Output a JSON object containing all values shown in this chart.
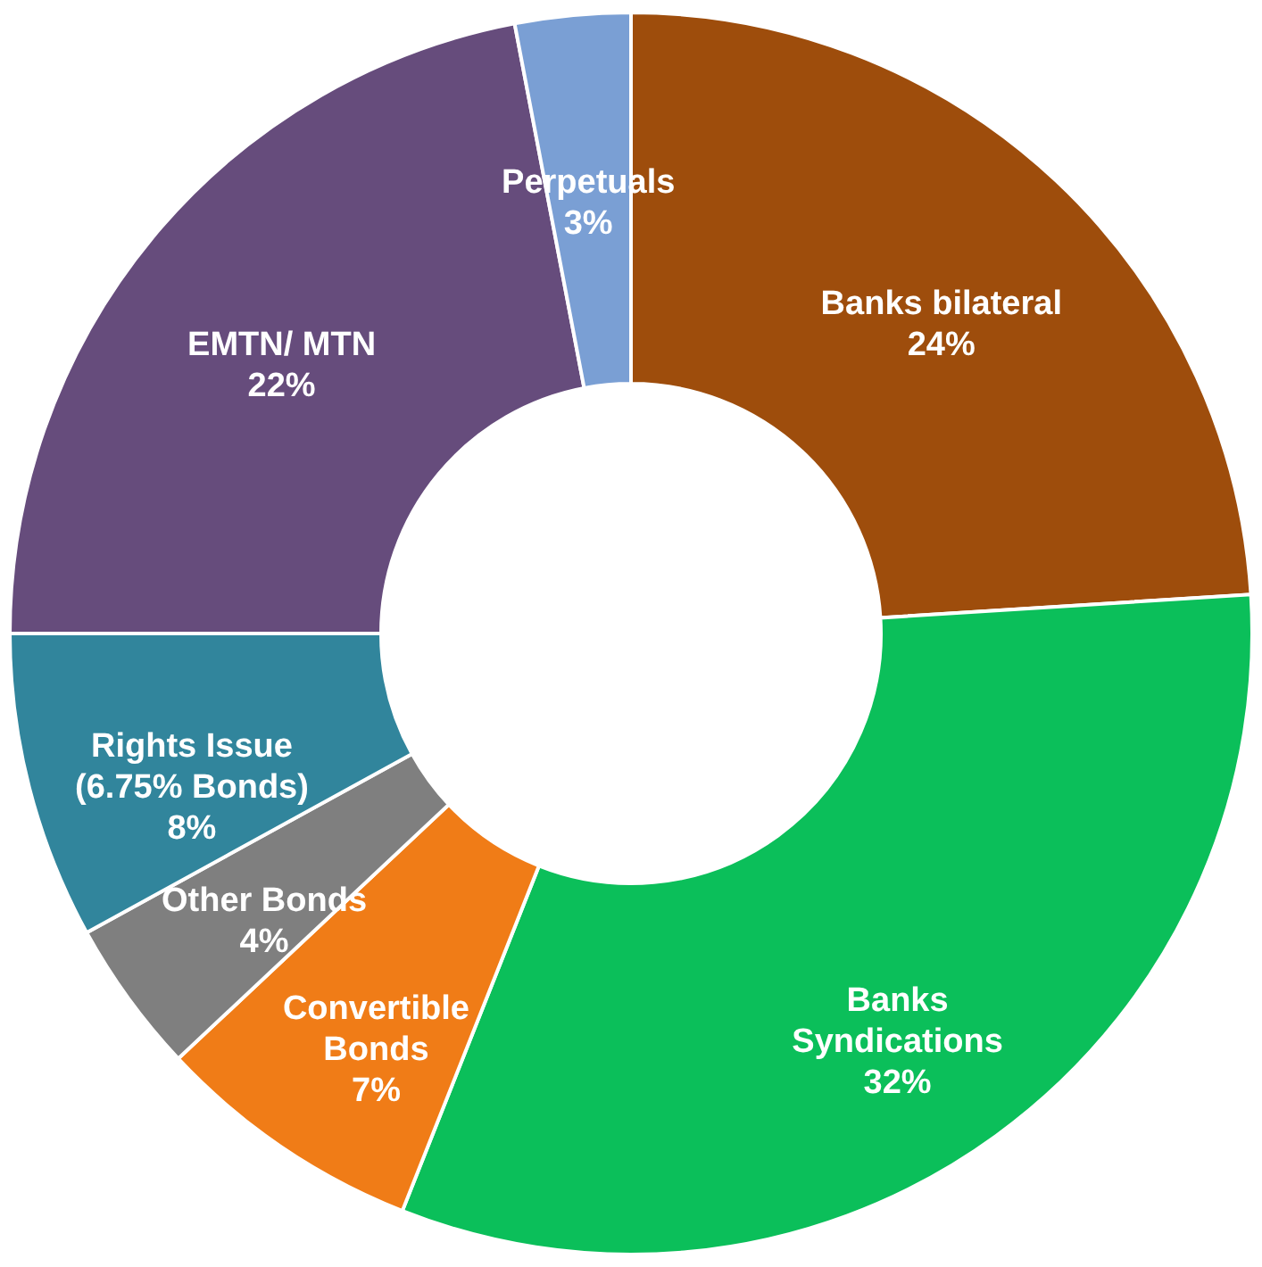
{
  "chart_data": {
    "type": "donut",
    "categories": [
      "Banks bilateral",
      "Banks Syndications",
      "Convertible Bonds",
      "Other Bonds",
      "Rights Issue (6.75% Bonds)",
      "EMTN/ MTN",
      "Perpetuals"
    ],
    "values": [
      24,
      32,
      7,
      4,
      8,
      22,
      3
    ],
    "colors": [
      "#9e4d0c",
      "#0bbf5a",
      "#f07c17",
      "#7f7f7f",
      "#31859c",
      "#664c7c",
      "#7a9fd4"
    ],
    "value_labels": [
      "24%",
      "32%",
      "7%",
      "4%",
      "8%",
      "22%",
      "3%"
    ]
  }
}
